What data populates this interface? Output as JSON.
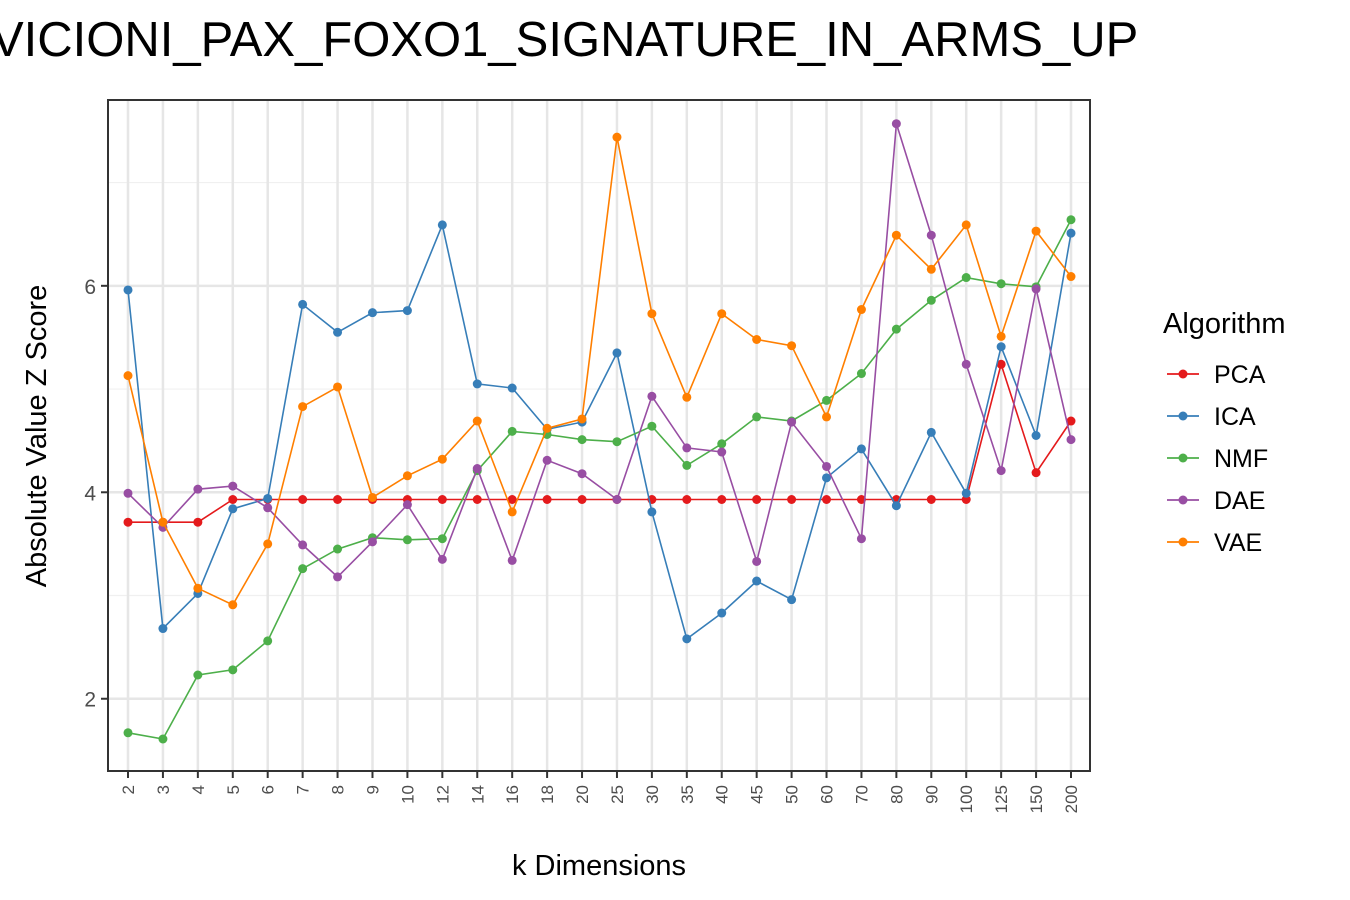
{
  "chart_data": {
    "type": "line",
    "title": "VICIONI_PAX_FOXO1_SIGNATURE_IN_ARMS_UP",
    "xlabel": "k Dimensions",
    "ylabel": "Absolute Value Z Score",
    "categories": [
      "2",
      "3",
      "4",
      "5",
      "6",
      "7",
      "8",
      "9",
      "10",
      "12",
      "14",
      "16",
      "18",
      "20",
      "25",
      "30",
      "35",
      "40",
      "45",
      "50",
      "60",
      "70",
      "80",
      "90",
      "100",
      "125",
      "150",
      "200"
    ],
    "y_ticks": [
      2,
      4,
      6
    ],
    "ylim": [
      1.3,
      7.8
    ],
    "grid": true,
    "legend": {
      "title": "Algorithm",
      "position": "right"
    },
    "series": [
      {
        "name": "PCA",
        "color": "#e41a1c",
        "values": [
          3.71,
          3.71,
          3.71,
          3.93,
          3.93,
          3.93,
          3.93,
          3.93,
          3.93,
          3.93,
          3.93,
          3.93,
          3.93,
          3.93,
          3.93,
          3.93,
          3.93,
          3.93,
          3.93,
          3.93,
          3.93,
          3.93,
          3.93,
          3.93,
          3.93,
          5.24,
          4.19,
          4.69
        ]
      },
      {
        "name": "ICA",
        "color": "#377eb8",
        "values": [
          5.96,
          2.68,
          3.02,
          3.84,
          3.94,
          5.82,
          5.55,
          5.74,
          5.76,
          6.59,
          5.05,
          5.01,
          4.61,
          4.68,
          5.35,
          3.81,
          2.58,
          2.83,
          3.14,
          2.96,
          4.14,
          4.42,
          3.87,
          4.58,
          3.99,
          5.41,
          4.55,
          6.51
        ]
      },
      {
        "name": "NMF",
        "color": "#4daf4a",
        "values": [
          1.67,
          1.61,
          2.23,
          2.28,
          2.56,
          3.26,
          3.45,
          3.56,
          3.54,
          3.55,
          4.21,
          4.59,
          4.56,
          4.51,
          4.49,
          4.64,
          4.26,
          4.47,
          4.73,
          4.69,
          4.89,
          5.15,
          5.58,
          5.86,
          6.08,
          6.02,
          5.99,
          6.64
        ]
      },
      {
        "name": "DAE",
        "color": "#984ea3",
        "values": [
          3.99,
          3.66,
          4.03,
          4.06,
          3.85,
          3.49,
          3.18,
          3.52,
          3.88,
          3.35,
          4.23,
          3.34,
          4.31,
          4.18,
          3.93,
          4.93,
          4.43,
          4.39,
          3.33,
          4.68,
          4.25,
          3.55,
          7.57,
          6.49,
          5.24,
          4.21,
          5.97,
          4.51
        ]
      },
      {
        "name": "VAE",
        "color": "#ff7f00",
        "values": [
          5.13,
          3.71,
          3.07,
          2.91,
          3.5,
          4.83,
          5.02,
          3.95,
          4.16,
          4.32,
          4.69,
          3.81,
          4.62,
          4.71,
          7.44,
          5.73,
          4.92,
          5.73,
          5.48,
          5.42,
          4.73,
          5.77,
          6.49,
          6.16,
          6.59,
          5.51,
          6.53,
          6.09
        ]
      }
    ]
  }
}
